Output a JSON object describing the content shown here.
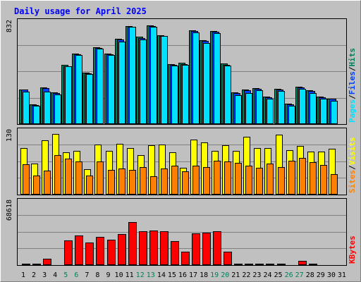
{
  "title": "Daily usage for April 2025",
  "colors": {
    "background": "#c0c0c0",
    "title": "#0000ff",
    "hits": "#00805c",
    "files": "#0040ff",
    "pages": "#00e0ff",
    "visits": "#ffff00",
    "sites": "#ff8000",
    "kbytes": "#ff0000",
    "weekend": "#00805c"
  },
  "chart_data": [
    {
      "type": "bar",
      "name": "hits-files-pages",
      "categories": [
        "1",
        "2",
        "3",
        "4",
        "5",
        "6",
        "7",
        "8",
        "9",
        "10",
        "11",
        "12",
        "13",
        "14",
        "15",
        "16",
        "17",
        "18",
        "19",
        "20",
        "21",
        "22",
        "23",
        "24",
        "25",
        "26",
        "27",
        "28",
        "29",
        "30",
        "31"
      ],
      "ylim": [
        0,
        832
      ],
      "ymax_label": "832",
      "ylabel_parts": [
        "Pages",
        "Files",
        "Hits"
      ],
      "series": [
        {
          "name": "Hits",
          "values": [
            288,
            165,
            302,
            261,
            490,
            587,
            428,
            640,
            587,
            710,
            815,
            724,
            823,
            740,
            500,
            510,
            778,
            699,
            772,
            502,
            262,
            287,
            300,
            226,
            294,
            170,
            310,
            282,
            226,
            213,
            0
          ]
        },
        {
          "name": "Files",
          "values": [
            285,
            160,
            296,
            255,
            483,
            581,
            420,
            634,
            581,
            702,
            810,
            716,
            815,
            734,
            490,
            498,
            771,
            690,
            765,
            495,
            257,
            280,
            293,
            221,
            288,
            165,
            304,
            276,
            221,
            209,
            0
          ]
        },
        {
          "name": "Pages",
          "values": [
            272,
            151,
            268,
            246,
            478,
            576,
            415,
            626,
            575,
            688,
            806,
            701,
            810,
            730,
            484,
            490,
            764,
            676,
            758,
            484,
            242,
            258,
            280,
            213,
            276,
            150,
            292,
            256,
            210,
            194,
            0
          ]
        }
      ]
    },
    {
      "type": "bar",
      "name": "visits-sites",
      "categories": [
        "1",
        "2",
        "3",
        "4",
        "5",
        "6",
        "7",
        "8",
        "9",
        "10",
        "11",
        "12",
        "13",
        "14",
        "15",
        "16",
        "17",
        "18",
        "19",
        "20",
        "21",
        "22",
        "23",
        "24",
        "25",
        "26",
        "27",
        "28",
        "29",
        "30",
        "31"
      ],
      "ylim": [
        0,
        130
      ],
      "ymax_label": "130",
      "ylabel_parts": [
        "Sites",
        "Visits"
      ],
      "series": [
        {
          "name": "Visits",
          "values": [
            98,
            66,
            115,
            128,
            89,
            92,
            54,
            106,
            93,
            108,
            98,
            84,
            104,
            106,
            90,
            57,
            117,
            110,
            92,
            104,
            93,
            123,
            98,
            99,
            127,
            94,
            103,
            91,
            91,
            97,
            0
          ]
        },
        {
          "name": "Sites",
          "values": [
            64,
            41,
            51,
            84,
            76,
            70,
            41,
            70,
            53,
            56,
            53,
            58,
            39,
            55,
            62,
            50,
            62,
            59,
            71,
            70,
            67,
            61,
            57,
            65,
            58,
            71,
            77,
            69,
            63,
            44,
            0
          ]
        }
      ]
    },
    {
      "type": "bar",
      "name": "kbytes",
      "categories": [
        "1",
        "2",
        "3",
        "4",
        "5",
        "6",
        "7",
        "8",
        "9",
        "10",
        "11",
        "12",
        "13",
        "14",
        "15",
        "16",
        "17",
        "18",
        "19",
        "20",
        "21",
        "22",
        "23",
        "24",
        "25",
        "26",
        "27",
        "28",
        "29",
        "30",
        "31"
      ],
      "ylim": [
        0,
        68618
      ],
      "ymax_label": "68618",
      "ylabel_parts": [
        "KBytes"
      ],
      "series": [
        {
          "name": "KBytes",
          "values": [
            1470,
            1470,
            6800,
            490,
            27920,
            33070,
            25490,
            31600,
            28400,
            34390,
            47900,
            38220,
            38720,
            38220,
            27030,
            14700,
            35140,
            36030,
            38220,
            14700,
            1470,
            1470,
            1470,
            1470,
            1470,
            490,
            4410,
            1470,
            980,
            490,
            0
          ]
        }
      ]
    }
  ]
}
